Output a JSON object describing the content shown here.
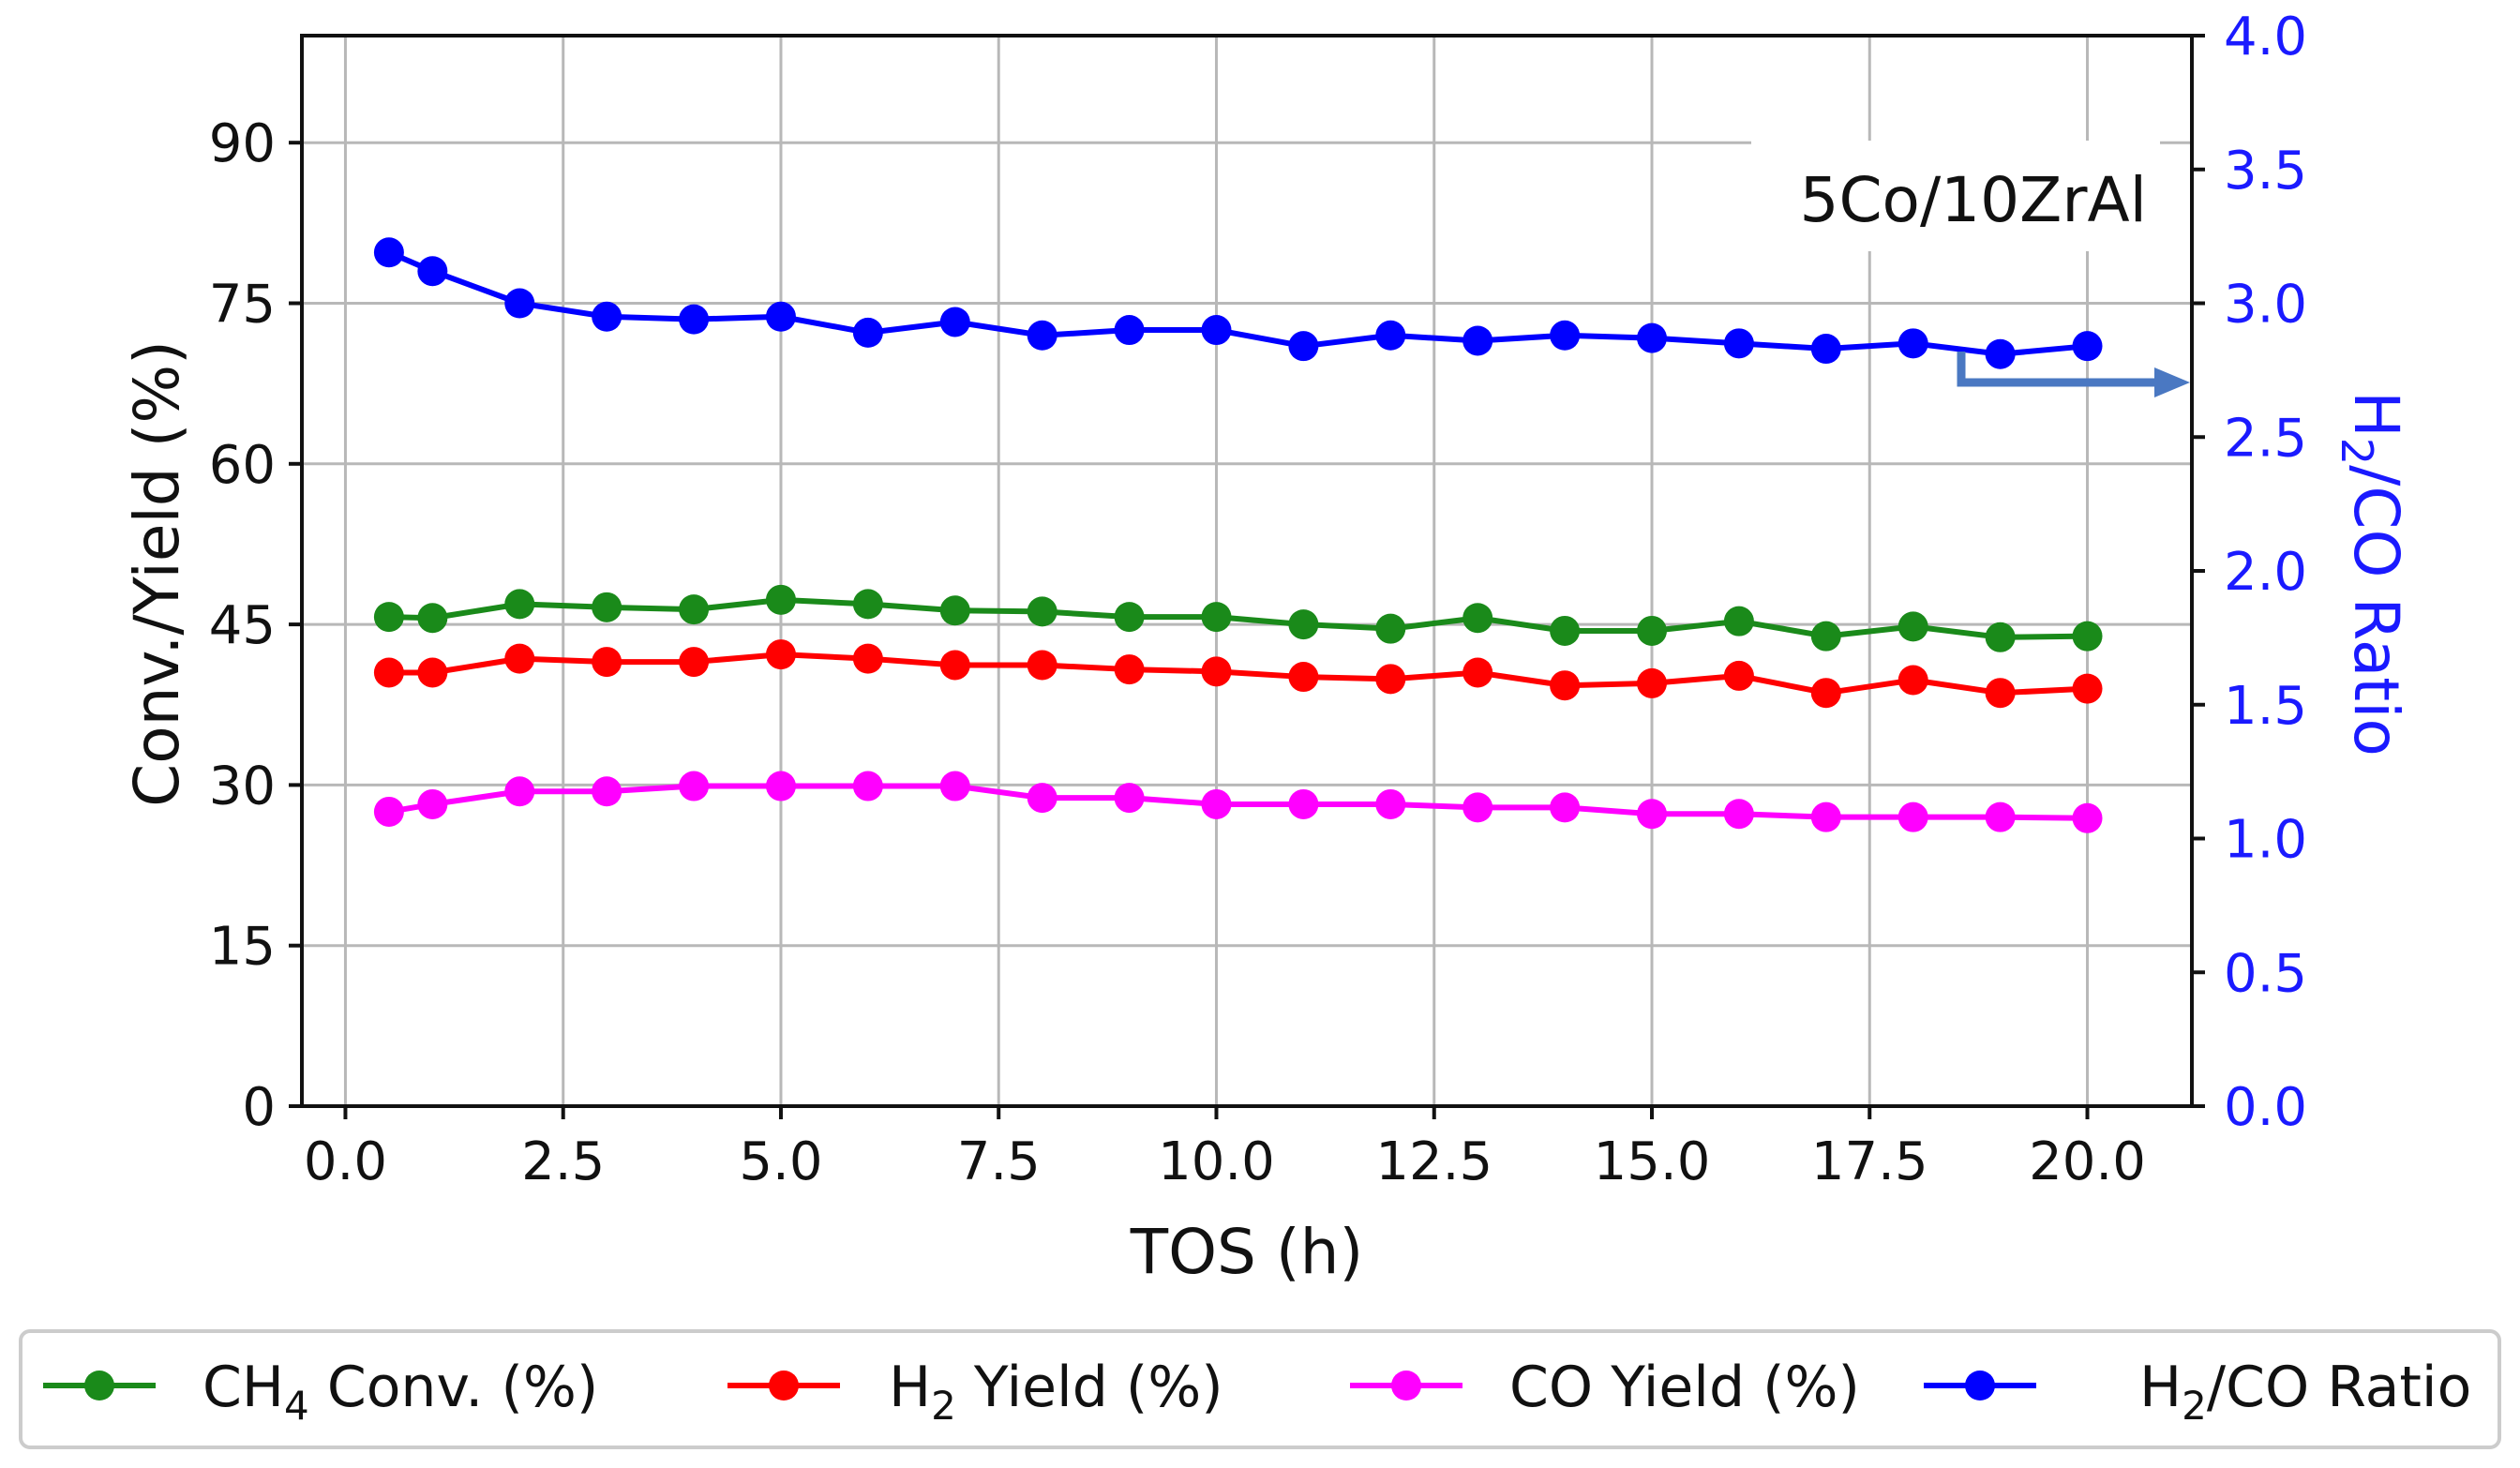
{
  "chart_data": {
    "type": "line",
    "annotation": "5Co/10ZrAl",
    "xlabel": "TOS (h)",
    "ylabel": "Conv./Yield (%)",
    "y2label": {
      "pre": "H",
      "sub": "2",
      "post": "/CO Ratio"
    },
    "xlim": [
      -0.5,
      21.2
    ],
    "ylim": [
      0,
      100
    ],
    "y2lim": [
      0,
      4.0
    ],
    "grid": true,
    "xticks": [
      0.0,
      2.5,
      5.0,
      7.5,
      10.0,
      12.5,
      15.0,
      17.5,
      20.0
    ],
    "xtick_labels": [
      "0.0",
      "2.5",
      "5.0",
      "7.5",
      "10.0",
      "12.5",
      "15.0",
      "17.5",
      "20.0"
    ],
    "yticks": [
      0,
      15,
      30,
      45,
      60,
      75,
      90
    ],
    "ytick_labels": [
      "0",
      "15",
      "30",
      "45",
      "60",
      "75",
      "90"
    ],
    "y2ticks": [
      0.0,
      0.5,
      1.0,
      1.5,
      2.0,
      2.5,
      3.0,
      3.5,
      4.0
    ],
    "y2tick_labels": [
      "0.0",
      "0.5",
      "1.0",
      "1.5",
      "2.0",
      "2.5",
      "3.0",
      "3.5",
      "4.0"
    ],
    "x": [
      0.5,
      1,
      2,
      3,
      4,
      5,
      6,
      7,
      8,
      9,
      10,
      11,
      12,
      13,
      14,
      15,
      16,
      17,
      18,
      19,
      20
    ],
    "series": [
      {
        "key": "ch4",
        "axis": "left",
        "color": "#1a8a1a",
        "legend": {
          "pre": "CH",
          "sub": "4",
          "post": " Conv. (%)"
        },
        "values": [
          45.7,
          45.6,
          46.9,
          46.6,
          46.4,
          47.3,
          46.9,
          46.3,
          46.2,
          45.7,
          45.7,
          45.0,
          44.6,
          45.6,
          44.4,
          44.4,
          45.3,
          43.9,
          44.8,
          43.8,
          43.9
        ]
      },
      {
        "key": "h2",
        "axis": "left",
        "color": "#ff0000",
        "legend": {
          "pre": "H",
          "sub": "2",
          "post": " Yield (%)"
        },
        "values": [
          40.5,
          40.5,
          41.8,
          41.5,
          41.5,
          42.2,
          41.8,
          41.2,
          41.2,
          40.8,
          40.6,
          40.1,
          39.9,
          40.5,
          39.3,
          39.5,
          40.2,
          38.6,
          39.8,
          38.6,
          39.0
        ]
      },
      {
        "key": "co",
        "axis": "left",
        "color": "#ff00ff",
        "legend": {
          "pre": "CO Yield (%)",
          "sub": "",
          "post": ""
        },
        "values": [
          27.5,
          28.2,
          29.4,
          29.4,
          29.9,
          29.9,
          29.9,
          29.9,
          28.8,
          28.8,
          28.2,
          28.2,
          28.2,
          27.9,
          27.9,
          27.3,
          27.3,
          27.0,
          27.0,
          27.0,
          26.9
        ]
      },
      {
        "key": "ratio",
        "axis": "right",
        "color": "#0000ff",
        "legend": {
          "pre": "H",
          "sub": "2",
          "post": "/CO Ratio"
        },
        "values": [
          3.19,
          3.12,
          3.0,
          2.95,
          2.94,
          2.95,
          2.89,
          2.93,
          2.88,
          2.9,
          2.9,
          2.84,
          2.88,
          2.86,
          2.88,
          2.87,
          2.85,
          2.83,
          2.85,
          2.81,
          2.84
        ]
      }
    ],
    "arrow_color": "#4a78c2"
  }
}
